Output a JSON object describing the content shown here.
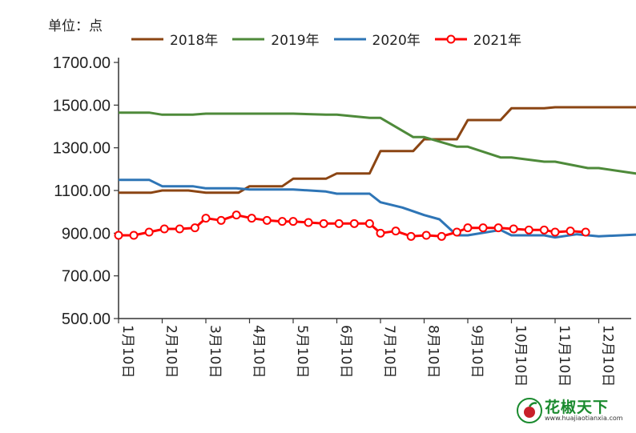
{
  "unit_label": "单位：点",
  "chart_data": {
    "type": "line",
    "xlabel": "",
    "ylabel": "",
    "ylim": [
      500,
      1700
    ],
    "yticks": [
      "500.00",
      "700.00",
      "900.00",
      "1100.00",
      "1300.00",
      "1500.00",
      "1700.00"
    ],
    "xticks": [
      "1月10日",
      "2月10日",
      "3月10日",
      "4月10日",
      "5月10日",
      "6月10日",
      "7月10日",
      "8月10日",
      "9月10日",
      "10月10日",
      "11月10日",
      "12月10日"
    ],
    "legend_position": "top",
    "grid": false,
    "series": [
      {
        "name": "2018年",
        "color": "#8B4513",
        "marker": false,
        "x": [
          0,
          0.75,
          1,
          1.6,
          2,
          2.75,
          3,
          3.75,
          4,
          4.75,
          5,
          5.75,
          6,
          6.75,
          7,
          7.75,
          8,
          8.75,
          9,
          9.75,
          10,
          10.75,
          11,
          12
        ],
        "values": [
          1090,
          1090,
          1100,
          1100,
          1090,
          1090,
          1120,
          1120,
          1155,
          1155,
          1180,
          1180,
          1285,
          1285,
          1340,
          1340,
          1430,
          1430,
          1485,
          1485,
          1490,
          1490,
          1490,
          1490
        ]
      },
      {
        "name": "2019年",
        "color": "#4E8A3A",
        "marker": false,
        "x": [
          0,
          0.7,
          1,
          1.7,
          2,
          3,
          4,
          4.75,
          5,
          5.75,
          6,
          6.75,
          7,
          7.75,
          8,
          8.75,
          9,
          9.75,
          10,
          10.75,
          11,
          12
        ],
        "values": [
          1465,
          1465,
          1455,
          1455,
          1460,
          1460,
          1460,
          1455,
          1455,
          1440,
          1440,
          1350,
          1350,
          1305,
          1305,
          1255,
          1255,
          1235,
          1235,
          1205,
          1205,
          1175
        ]
      },
      {
        "name": "2020年",
        "color": "#2E75B6",
        "marker": false,
        "x": [
          0,
          0.7,
          1,
          1.7,
          2,
          2.7,
          3,
          4,
          4.75,
          5,
          5.75,
          6,
          6.5,
          7,
          7.35,
          7.75,
          8,
          8.75,
          9,
          9.75,
          10,
          10.5,
          11,
          12
        ],
        "values": [
          1150,
          1150,
          1120,
          1120,
          1110,
          1110,
          1105,
          1105,
          1095,
          1085,
          1085,
          1045,
          1020,
          985,
          965,
          890,
          890,
          915,
          890,
          890,
          880,
          895,
          885,
          895
        ]
      },
      {
        "name": "2021年",
        "color": "#FF0000",
        "marker": true,
        "x": [
          0,
          0.35,
          0.7,
          1.05,
          1.4,
          1.75,
          2.0,
          2.35,
          2.7,
          3.05,
          3.4,
          3.75,
          4.0,
          4.35,
          4.7,
          5.05,
          5.4,
          5.75,
          6.0,
          6.35,
          6.7,
          7.05,
          7.4,
          7.75,
          8.0,
          8.35,
          8.7,
          9.05,
          9.4,
          9.75,
          10.0,
          10.35,
          10.7
        ],
        "values": [
          890,
          890,
          905,
          920,
          920,
          925,
          970,
          960,
          985,
          970,
          960,
          955,
          955,
          950,
          945,
          945,
          945,
          945,
          900,
          910,
          885,
          890,
          885,
          905,
          925,
          925,
          925,
          920,
          915,
          915,
          905,
          910,
          905
        ]
      }
    ]
  },
  "watermark": {
    "text": "花椒天下",
    "url": "www.huajiaotianxia.com"
  }
}
